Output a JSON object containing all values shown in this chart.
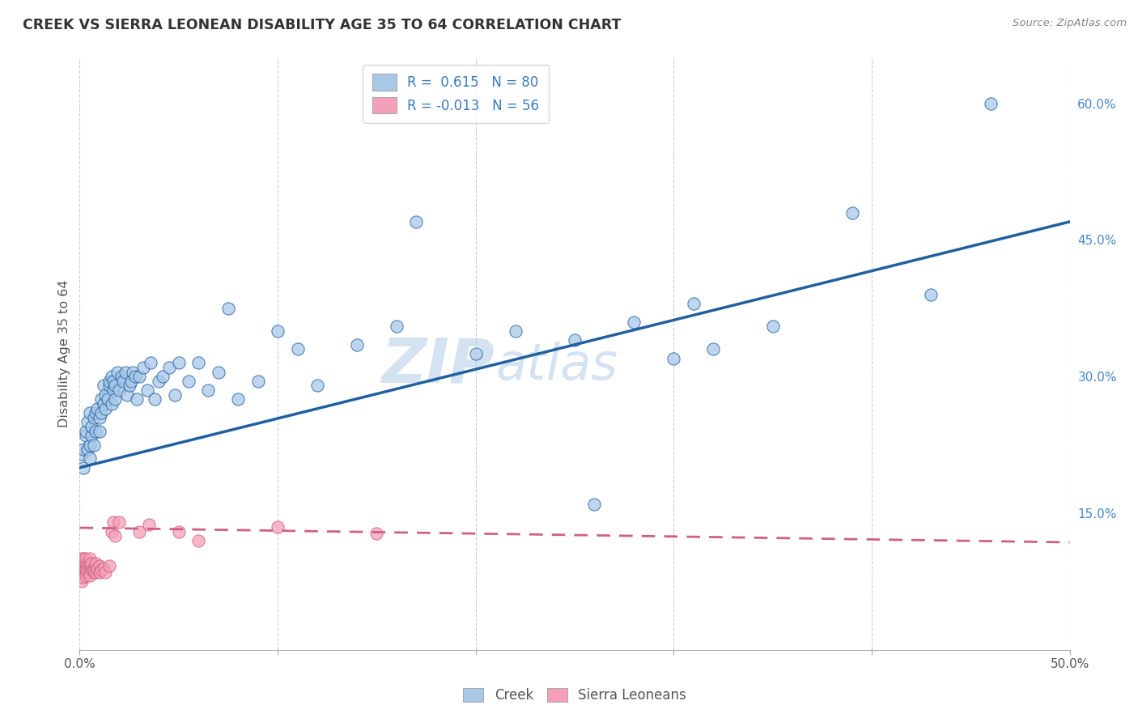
{
  "title": "CREEK VS SIERRA LEONEAN DISABILITY AGE 35 TO 64 CORRELATION CHART",
  "source": "Source: ZipAtlas.com",
  "ylabel": "Disability Age 35 to 64",
  "x_min": 0.0,
  "x_max": 0.5,
  "y_min": 0.0,
  "y_max": 0.65,
  "y_ticks_right": [
    0.15,
    0.3,
    0.45,
    0.6
  ],
  "y_tick_labels_right": [
    "15.0%",
    "30.0%",
    "45.0%",
    "60.0%"
  ],
  "creek_R": 0.615,
  "creek_N": 80,
  "sierra_R": -0.013,
  "sierra_N": 56,
  "creek_color": "#a8c8e8",
  "sierra_color": "#f4a0b8",
  "creek_line_color": "#2060a0",
  "sierra_line_color": "#d06080",
  "watermark_zip": "ZIP",
  "watermark_atlas": "atlas",
  "background_color": "#ffffff",
  "grid_color": "#cccccc",
  "creek_x": [
    0.001,
    0.002,
    0.002,
    0.003,
    0.003,
    0.004,
    0.004,
    0.005,
    0.005,
    0.005,
    0.006,
    0.006,
    0.007,
    0.007,
    0.008,
    0.008,
    0.009,
    0.01,
    0.01,
    0.011,
    0.011,
    0.012,
    0.012,
    0.013,
    0.013,
    0.014,
    0.015,
    0.015,
    0.016,
    0.016,
    0.017,
    0.017,
    0.018,
    0.018,
    0.019,
    0.02,
    0.021,
    0.022,
    0.023,
    0.024,
    0.025,
    0.026,
    0.027,
    0.028,
    0.029,
    0.03,
    0.032,
    0.034,
    0.036,
    0.038,
    0.04,
    0.042,
    0.045,
    0.048,
    0.05,
    0.055,
    0.06,
    0.065,
    0.07,
    0.075,
    0.08,
    0.09,
    0.1,
    0.11,
    0.12,
    0.14,
    0.16,
    0.2,
    0.22,
    0.25,
    0.28,
    0.3,
    0.32,
    0.35,
    0.39,
    0.43,
    0.46,
    0.31,
    0.26,
    0.17
  ],
  "creek_y": [
    0.215,
    0.22,
    0.2,
    0.235,
    0.24,
    0.22,
    0.25,
    0.21,
    0.225,
    0.26,
    0.235,
    0.245,
    0.225,
    0.255,
    0.24,
    0.26,
    0.265,
    0.24,
    0.255,
    0.26,
    0.275,
    0.27,
    0.29,
    0.265,
    0.28,
    0.275,
    0.29,
    0.295,
    0.3,
    0.27,
    0.285,
    0.295,
    0.275,
    0.29,
    0.305,
    0.285,
    0.3,
    0.295,
    0.305,
    0.28,
    0.29,
    0.295,
    0.305,
    0.3,
    0.275,
    0.3,
    0.31,
    0.285,
    0.315,
    0.275,
    0.295,
    0.3,
    0.31,
    0.28,
    0.315,
    0.295,
    0.315,
    0.285,
    0.305,
    0.375,
    0.275,
    0.295,
    0.35,
    0.33,
    0.29,
    0.335,
    0.355,
    0.325,
    0.35,
    0.34,
    0.36,
    0.32,
    0.33,
    0.355,
    0.48,
    0.39,
    0.6,
    0.38,
    0.16,
    0.47
  ],
  "sierra_x": [
    0.001,
    0.001,
    0.001,
    0.001,
    0.001,
    0.001,
    0.001,
    0.001,
    0.002,
    0.002,
    0.002,
    0.002,
    0.002,
    0.002,
    0.003,
    0.003,
    0.003,
    0.003,
    0.003,
    0.003,
    0.004,
    0.004,
    0.004,
    0.004,
    0.005,
    0.005,
    0.005,
    0.005,
    0.005,
    0.006,
    0.006,
    0.006,
    0.007,
    0.007,
    0.007,
    0.008,
    0.008,
    0.008,
    0.009,
    0.009,
    0.01,
    0.01,
    0.011,
    0.012,
    0.013,
    0.015,
    0.016,
    0.017,
    0.018,
    0.02,
    0.03,
    0.035,
    0.05,
    0.06,
    0.1,
    0.15
  ],
  "sierra_y": [
    0.09,
    0.085,
    0.095,
    0.1,
    0.08,
    0.088,
    0.075,
    0.092,
    0.085,
    0.095,
    0.1,
    0.088,
    0.08,
    0.092,
    0.09,
    0.085,
    0.095,
    0.1,
    0.088,
    0.082,
    0.085,
    0.095,
    0.092,
    0.088,
    0.09,
    0.085,
    0.095,
    0.1,
    0.082,
    0.088,
    0.092,
    0.095,
    0.09,
    0.085,
    0.088,
    0.092,
    0.085,
    0.095,
    0.088,
    0.09,
    0.092,
    0.085,
    0.088,
    0.09,
    0.085,
    0.092,
    0.13,
    0.14,
    0.125,
    0.14,
    0.13,
    0.138,
    0.13,
    0.12,
    0.135,
    0.128
  ],
  "creek_trend_x0": 0.0,
  "creek_trend_y0": 0.2,
  "creek_trend_x1": 0.5,
  "creek_trend_y1": 0.47,
  "sierra_trend_x0": 0.0,
  "sierra_trend_y0": 0.134,
  "sierra_trend_x1": 0.5,
  "sierra_trend_y1": 0.118
}
